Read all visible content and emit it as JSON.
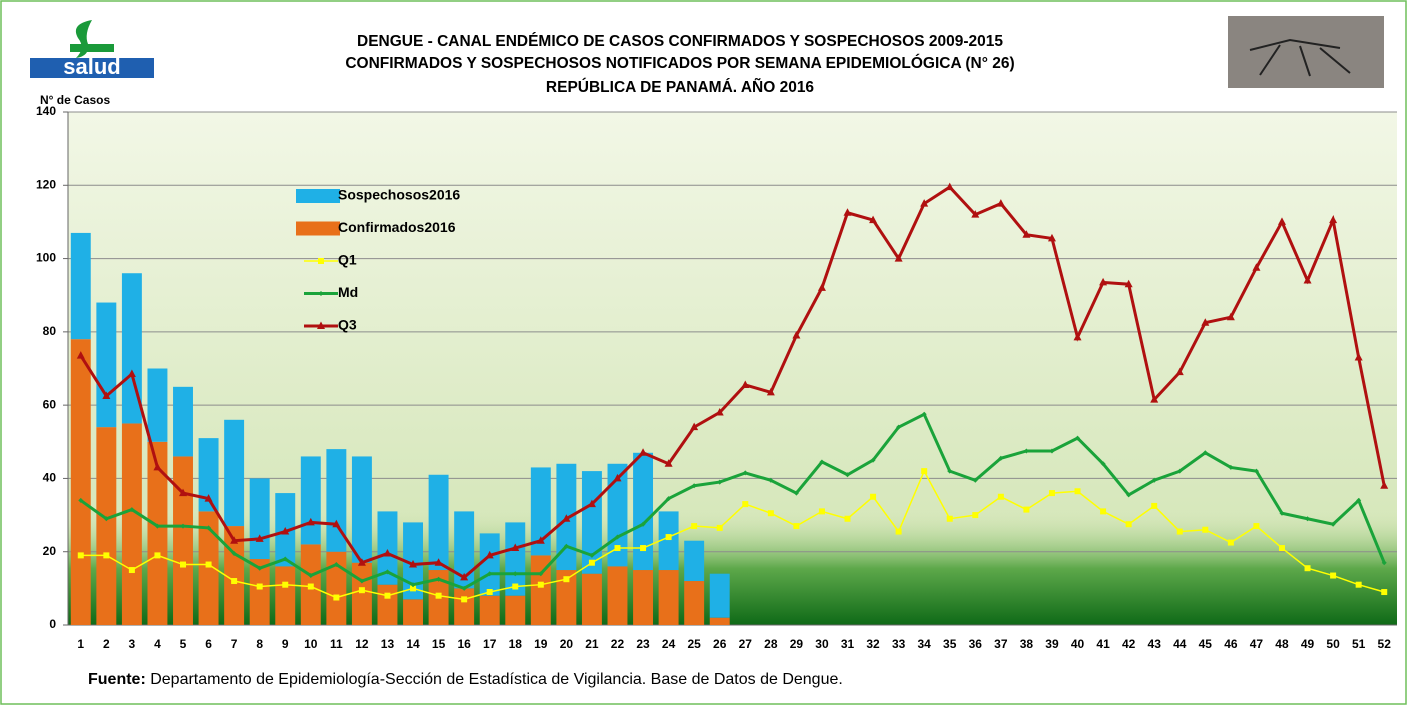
{
  "chart_data": {
    "type": "bar",
    "title": [
      "DENGUE - CANAL ENDÉMICO DE CASOS CONFIRMADOS Y SOSPECHOSOS 2009-2015",
      "CONFIRMADOS Y SOSPECHOSOS NOTIFICADOS POR SEMANA EPIDEMIOLÓGICA (N° 26)",
      "REPÚBLICA DE PANAMÁ. AÑO 2016"
    ],
    "logo_text": "salud",
    "y_label": "N° de Casos",
    "source": {
      "label": "Fuente:",
      "text": " Departamento de Epidemiología-Sección de Estadística de Vigilancia. Base de Datos de Dengue."
    },
    "categories": [
      "1",
      "2",
      "3",
      "4",
      "5",
      "6",
      "7",
      "8",
      "9",
      "10",
      "11",
      "12",
      "13",
      "14",
      "15",
      "16",
      "17",
      "18",
      "19",
      "20",
      "21",
      "22",
      "23",
      "24",
      "25",
      "26",
      "27",
      "28",
      "29",
      "30",
      "31",
      "32",
      "33",
      "34",
      "35",
      "36",
      "37",
      "38",
      "39",
      "40",
      "41",
      "42",
      "43",
      "44",
      "45",
      "46",
      "47",
      "48",
      "49",
      "50",
      "51",
      "52"
    ],
    "ylim": [
      0,
      140
    ],
    "yticks": [
      0,
      20,
      40,
      60,
      80,
      100,
      120,
      140
    ],
    "grid": true,
    "series": [
      {
        "name": "Sospechosos2016",
        "type": "bar",
        "color": "#1fb0e6",
        "values": [
          29,
          34,
          41,
          20,
          19,
          20,
          29,
          22,
          20,
          24,
          28,
          29,
          20,
          21,
          26,
          21,
          17,
          20,
          24,
          29,
          28,
          28,
          32,
          16,
          11,
          12,
          null,
          null,
          null,
          null,
          null,
          null,
          null,
          null,
          null,
          null,
          null,
          null,
          null,
          null,
          null,
          null,
          null,
          null,
          null,
          null,
          null,
          null,
          null,
          null,
          null,
          null
        ]
      },
      {
        "name": "Confirmados2016",
        "type": "bar",
        "color": "#e8701a",
        "values": [
          78,
          54,
          55,
          50,
          46,
          31,
          27,
          18,
          16,
          22,
          20,
          17,
          11,
          7,
          15,
          10,
          8,
          8,
          19,
          15,
          14,
          16,
          15,
          15,
          12,
          2,
          null,
          null,
          null,
          null,
          null,
          null,
          null,
          null,
          null,
          null,
          null,
          null,
          null,
          null,
          null,
          null,
          null,
          null,
          null,
          null,
          null,
          null,
          null,
          null,
          null,
          null
        ]
      },
      {
        "name": "Q1",
        "type": "line",
        "color": "#ffff00",
        "marker": "square",
        "values": [
          19,
          19,
          15,
          19,
          16.5,
          16.5,
          12,
          10.5,
          11,
          10.5,
          7.5,
          9.5,
          8,
          10,
          8,
          7,
          9,
          10.5,
          11,
          12.5,
          17,
          21,
          21,
          24,
          27,
          26.5,
          33,
          30.5,
          27,
          31,
          29,
          35,
          25.5,
          42,
          29,
          30,
          35,
          31.5,
          36,
          36.5,
          31,
          27.5,
          32.5,
          25.5,
          26,
          22.5,
          27,
          21,
          15.5,
          13.5,
          11,
          9
        ]
      },
      {
        "name": "Md",
        "type": "line",
        "color": "#1aa33a",
        "marker": "diamond",
        "values": [
          34,
          29,
          31.5,
          27,
          27,
          26.5,
          19.5,
          15.5,
          18,
          13.5,
          16.5,
          12,
          14.5,
          11,
          12.5,
          10,
          14,
          14,
          14,
          21.5,
          19,
          24,
          27.5,
          34.5,
          38,
          39,
          41.5,
          39.5,
          36,
          44.5,
          41,
          45,
          54,
          57.5,
          42,
          39.5,
          45.5,
          47.5,
          47.5,
          51,
          44,
          35.5,
          39.5,
          42,
          47,
          43,
          42,
          30.5,
          29,
          27.5,
          34,
          17
        ]
      },
      {
        "name": "Q3",
        "type": "line",
        "color": "#b01010",
        "marker": "triangle",
        "values": [
          73.5,
          62.5,
          68.5,
          43,
          36,
          34.5,
          23,
          23.5,
          25.5,
          28,
          27.5,
          17,
          19.5,
          16.5,
          17,
          13,
          19,
          21,
          23,
          29,
          33,
          40,
          47,
          44,
          54,
          58,
          65.5,
          63.5,
          79,
          92,
          112.5,
          110.5,
          100,
          115,
          119.5,
          112,
          115,
          106.5,
          105.5,
          78.5,
          93.5,
          93,
          61.5,
          69,
          82.5,
          84,
          97.5,
          110,
          94,
          110.5,
          73,
          38
        ]
      }
    ]
  }
}
